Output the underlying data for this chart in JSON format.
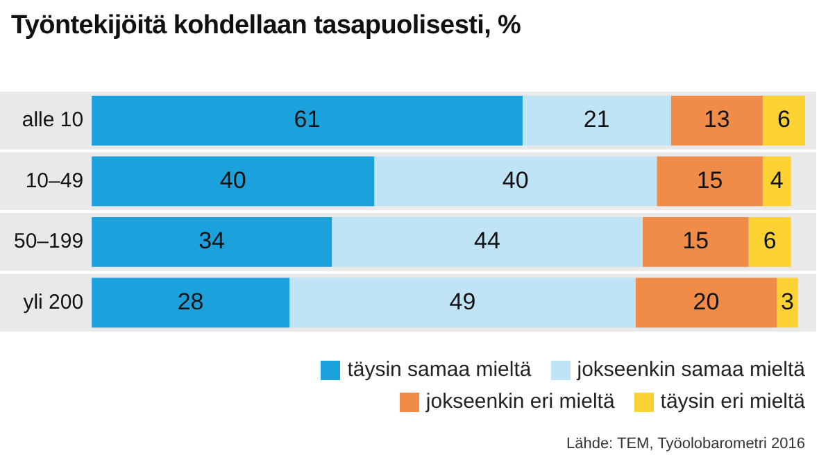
{
  "chart_data": {
    "type": "bar",
    "orientation": "horizontal",
    "stacked": true,
    "title": "Työntekijöitä kohdellaan tasapuolisesti, %",
    "categories": [
      "alle 10",
      "10–49",
      "50–199",
      "yli 200"
    ],
    "series": [
      {
        "name": "täysin samaa mieltä",
        "color": "#1ba1db",
        "values": [
          61,
          40,
          34,
          28
        ]
      },
      {
        "name": "jokseenkin samaa mieltä",
        "color": "#c0e4f6",
        "values": [
          21,
          40,
          44,
          49
        ]
      },
      {
        "name": "jokseenkin eri mieltä",
        "color": "#f08c48",
        "values": [
          13,
          15,
          15,
          20
        ]
      },
      {
        "name": "täysin eri mieltä",
        "color": "#fdd233",
        "values": [
          6,
          4,
          6,
          3
        ]
      }
    ],
    "xlim": [
      0,
      101
    ],
    "tick_labels": "y",
    "grid": false,
    "legend": "bottom right",
    "data_labels": true,
    "annotations": [
      "Lähde: TEM, Työolobarometri 2016"
    ]
  }
}
